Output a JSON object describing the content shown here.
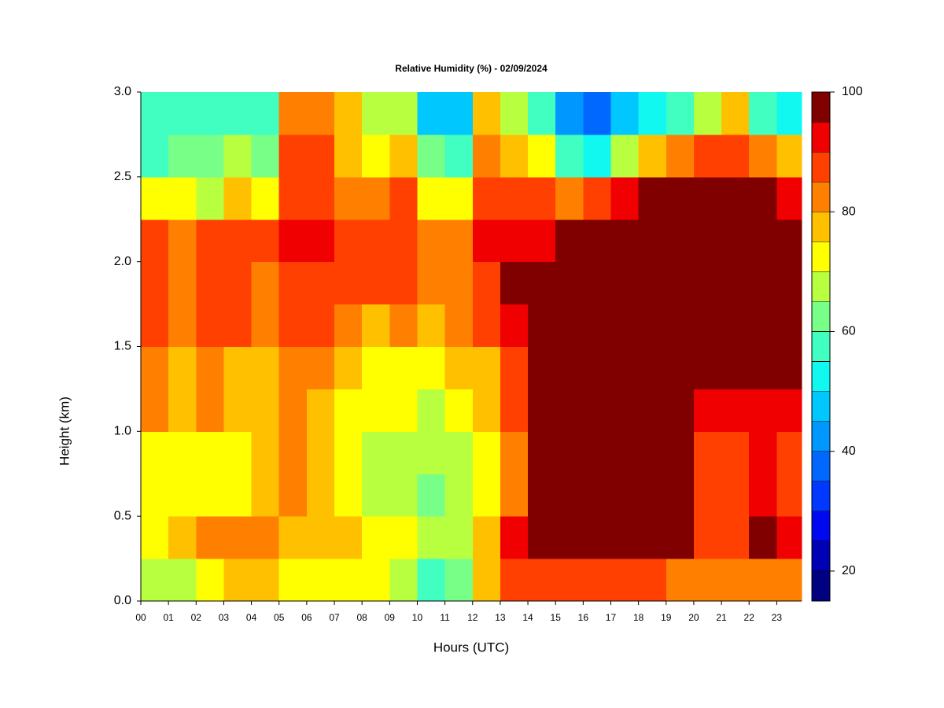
{
  "chart_data": {
    "type": "heatmap",
    "title": "Relative Humidity (%) - 02/09/2024",
    "xlabel": "Hours (UTC)",
    "ylabel": "Height (km)",
    "x": [
      0,
      1,
      2,
      3,
      4,
      5,
      6,
      7,
      8,
      9,
      10,
      11,
      12,
      13,
      14,
      15,
      16,
      17,
      18,
      19,
      20,
      21,
      22,
      23
    ],
    "y": [
      0,
      0.25,
      0.5,
      0.75,
      1,
      1.25,
      1.5,
      1.75,
      2,
      2.25,
      2.5,
      2.75
    ],
    "z": [
      [
        65,
        65,
        72,
        78,
        78,
        72,
        72,
        72,
        70,
        68,
        58,
        62,
        78,
        85,
        88,
        88,
        88,
        86,
        86,
        82,
        80,
        82,
        84,
        84
      ],
      [
        70,
        75,
        80,
        80,
        82,
        78,
        78,
        76,
        74,
        72,
        65,
        68,
        75,
        92,
        97,
        97,
        97,
        97,
        97,
        96,
        88,
        88,
        95,
        93
      ],
      [
        70,
        70,
        72,
        72,
        75,
        80,
        75,
        70,
        68,
        68,
        62,
        65,
        72,
        82,
        97,
        97,
        97,
        97,
        97,
        96,
        85,
        85,
        90,
        88
      ],
      [
        70,
        70,
        72,
        72,
        75,
        80,
        75,
        70,
        68,
        68,
        65,
        68,
        72,
        82,
        96,
        97,
        97,
        97,
        97,
        97,
        85,
        85,
        90,
        88
      ],
      [
        82,
        78,
        80,
        75,
        75,
        82,
        78,
        72,
        70,
        70,
        68,
        72,
        75,
        85,
        96,
        97,
        97,
        97,
        97,
        97,
        92,
        90,
        92,
        90
      ],
      [
        82,
        78,
        80,
        75,
        75,
        82,
        82,
        75,
        72,
        72,
        72,
        75,
        78,
        88,
        97,
        97,
        97,
        97,
        97,
        97,
        97,
        97,
        97,
        97
      ],
      [
        88,
        82,
        85,
        85,
        82,
        85,
        88,
        80,
        78,
        80,
        78,
        80,
        85,
        92,
        97,
        97,
        97,
        97,
        97,
        97,
        97,
        97,
        97,
        97
      ],
      [
        88,
        82,
        85,
        85,
        82,
        85,
        88,
        85,
        85,
        85,
        80,
        82,
        88,
        95,
        97,
        97,
        97,
        97,
        97,
        97,
        97,
        97,
        97,
        97
      ],
      [
        88,
        82,
        85,
        85,
        85,
        90,
        90,
        85,
        85,
        88,
        80,
        80,
        90,
        92,
        92,
        97,
        97,
        97,
        97,
        97,
        97,
        97,
        97,
        97
      ],
      [
        72,
        70,
        68,
        75,
        70,
        88,
        88,
        82,
        80,
        85,
        72,
        70,
        88,
        88,
        85,
        80,
        88,
        92,
        95,
        97,
        97,
        97,
        95,
        92
      ],
      [
        55,
        60,
        60,
        65,
        62,
        85,
        85,
        78,
        72,
        75,
        60,
        55,
        80,
        78,
        70,
        55,
        52,
        65,
        75,
        80,
        85,
        88,
        80,
        75
      ],
      [
        55,
        55,
        55,
        58,
        58,
        82,
        80,
        75,
        65,
        65,
        48,
        45,
        75,
        65,
        55,
        42,
        35,
        45,
        50,
        55,
        68,
        75,
        58,
        52
      ]
    ],
    "xlim": [
      0,
      23.9
    ],
    "ylim": [
      0,
      3
    ],
    "xticks": [
      {
        "value": 0,
        "label": "00"
      },
      {
        "value": 1,
        "label": "01"
      },
      {
        "value": 2,
        "label": "02"
      },
      {
        "value": 3,
        "label": "03"
      },
      {
        "value": 4,
        "label": "04"
      },
      {
        "value": 5,
        "label": "05"
      },
      {
        "value": 6,
        "label": "06"
      },
      {
        "value": 7,
        "label": "07"
      },
      {
        "value": 8,
        "label": "08"
      },
      {
        "value": 9,
        "label": "09"
      },
      {
        "value": 10,
        "label": "10"
      },
      {
        "value": 11,
        "label": "11"
      },
      {
        "value": 12,
        "label": "12"
      },
      {
        "value": 13,
        "label": "13"
      },
      {
        "value": 14,
        "label": "14"
      },
      {
        "value": 15,
        "label": "15"
      },
      {
        "value": 16,
        "label": "16"
      },
      {
        "value": 17,
        "label": "17"
      },
      {
        "value": 18,
        "label": "18"
      },
      {
        "value": 19,
        "label": "19"
      },
      {
        "value": 20,
        "label": "20"
      },
      {
        "value": 21,
        "label": "21"
      },
      {
        "value": 22,
        "label": "22"
      },
      {
        "value": 23,
        "label": "23"
      }
    ],
    "yticks": [
      {
        "value": 0,
        "label": "0.0"
      },
      {
        "value": 0.5,
        "label": "0.5"
      },
      {
        "value": 1,
        "label": "1.0"
      },
      {
        "value": 1.5,
        "label": "1.5"
      },
      {
        "value": 2,
        "label": "2.0"
      },
      {
        "value": 2.5,
        "label": "2.5"
      },
      {
        "value": 3,
        "label": "3.0"
      }
    ],
    "levels": [
      15,
      20,
      25,
      30,
      35,
      40,
      45,
      50,
      55,
      60,
      65,
      70,
      75,
      80,
      85,
      90,
      95,
      100
    ],
    "colors": [
      "#000080",
      "#0000b4",
      "#0008f0",
      "#0038ff",
      "#0068ff",
      "#0098ff",
      "#00c8ff",
      "#10f8f0",
      "#40ffc0",
      "#78ff88",
      "#b8ff40",
      "#ffff00",
      "#ffc000",
      "#ff8000",
      "#ff4000",
      "#f00000",
      "#800000"
    ],
    "colorbar_ticks": [
      20,
      40,
      60,
      80,
      100
    ]
  }
}
